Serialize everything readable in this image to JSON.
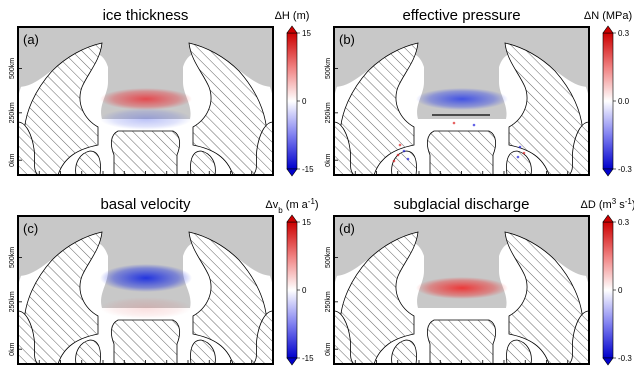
{
  "figure": {
    "panels": [
      {
        "letter": "(a)",
        "title": "ice thickness",
        "colorbar": {
          "label": "ΔH (m)",
          "ticks": [
            "15",
            "0",
            "-15"
          ]
        },
        "anomaly": [
          {
            "color": "#e8343a",
            "strength": 0.85
          },
          {
            "color": "#3a4ee6",
            "strength": 0.35
          }
        ],
        "transect_line": false,
        "scatter": false
      },
      {
        "letter": "(b)",
        "title": "effective pressure",
        "colorbar": {
          "label": "ΔN (MPa)",
          "ticks": [
            "0.3",
            "0.0",
            "-0.3"
          ]
        },
        "anomaly": [
          {
            "color": "#2b3ee8",
            "strength": 0.85
          }
        ],
        "transect_line": true,
        "scatter": true
      },
      {
        "letter": "(c)",
        "title": "basal velocity",
        "colorbar": {
          "label": "Δv",
          "label_sub": "b",
          "label_unit": "(m a",
          "label_sup": "-1",
          "label_end": ")",
          "ticks": [
            "15",
            "0",
            "-15"
          ]
        },
        "anomaly": [
          {
            "color": "#1a2de0",
            "strength": 0.95
          },
          {
            "color": "#e04848",
            "strength": 0.18
          }
        ],
        "transect_line": false,
        "scatter": false
      },
      {
        "letter": "(d)",
        "title": "subglacial discharge",
        "colorbar": {
          "label": "ΔD",
          "label_unit": "(m",
          "label_sup": "3",
          "label_mid": " s",
          "label_sup2": "-1",
          "label_end": ")",
          "ticks": [
            "0.3",
            "0",
            "-0.3"
          ]
        },
        "anomaly": [
          {
            "color": "#ef2a2a",
            "strength": 0.9
          }
        ],
        "transect_line": false,
        "scatter": false
      }
    ],
    "y_axis_ticks": [
      "500km",
      "250km",
      "0km"
    ],
    "colors": {
      "grounded_ice": "#c8c8c8",
      "hatch": "#000000",
      "frame": "#000000",
      "cbar_top": "#cc0000",
      "cbar_mid": "#ffffff",
      "cbar_bottom": "#0000cc"
    }
  }
}
